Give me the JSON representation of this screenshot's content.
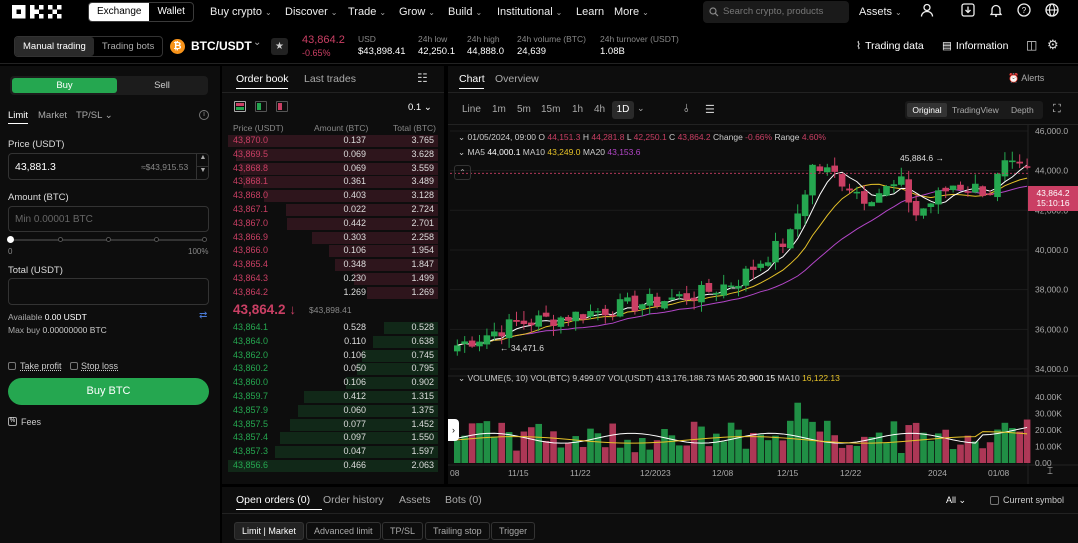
{
  "nav": {
    "exchange": "Exchange",
    "wallet": "Wallet",
    "menu": [
      "Buy crypto",
      "Discover",
      "Trade",
      "Grow",
      "Build",
      "Institutional",
      "Learn",
      "More"
    ],
    "search_placeholder": "Search crypto, products",
    "assets": "Assets"
  },
  "pair": {
    "modes": [
      "Manual trading",
      "Trading bots"
    ],
    "symbol": "BTC/USDT",
    "price": "43,864.2",
    "change": "-0.65%",
    "usd_label": "USD",
    "usd_value": "$43,898.41",
    "stats": [
      {
        "label": "24h low",
        "value": "42,250.1"
      },
      {
        "label": "24h high",
        "value": "44,888.0"
      },
      {
        "label": "24h volume (BTC)",
        "value": "24,639"
      },
      {
        "label": "24h turnover (USDT)",
        "value": "1.08B"
      }
    ],
    "trading_data": "Trading data",
    "information": "Information"
  },
  "order": {
    "buy": "Buy",
    "sell": "Sell",
    "types": [
      "Limit",
      "Market",
      "TP/SL"
    ],
    "price_label": "Price (USDT)",
    "price_value": "43,881.3",
    "price_usd": "≈$43,915.53",
    "amount_label": "Amount (BTC)",
    "amount_placeholder": "Min 0.00001 BTC",
    "slider_min": "0",
    "slider_max": "100%",
    "total_label": "Total (USDT)",
    "available_label": "Available",
    "available_value": "0.00 USDT",
    "maxbuy_label": "Max buy",
    "maxbuy_value": "0.00000000 BTC",
    "take_profit": "Take profit",
    "stop_loss": "Stop loss",
    "buy_button": "Buy BTC",
    "fees": "Fees"
  },
  "orderbook": {
    "tabs": [
      "Order book",
      "Last trades"
    ],
    "precision": "0.1",
    "headers": [
      "Price (USDT)",
      "Amount (BTC)",
      "Total (BTC)"
    ],
    "asks": [
      [
        "43,870.0",
        "0.137",
        "3.765"
      ],
      [
        "43,869.5",
        "0.069",
        "3.628"
      ],
      [
        "43,868.8",
        "0.069",
        "3.559"
      ],
      [
        "43,868.1",
        "0.361",
        "3.489"
      ],
      [
        "43,868.0",
        "0.403",
        "3.128"
      ],
      [
        "43,867.1",
        "0.022",
        "2.724"
      ],
      [
        "43,867.0",
        "0.442",
        "2.701"
      ],
      [
        "43,866.9",
        "0.303",
        "2.258"
      ],
      [
        "43,866.0",
        "0.106",
        "1.954"
      ],
      [
        "43,865.4",
        "0.348",
        "1.847"
      ],
      [
        "43,864.3",
        "0.230",
        "1.499"
      ],
      [
        "43,864.2",
        "1.269",
        "1.269"
      ]
    ],
    "mid_price": "43,864.2",
    "mid_usd": "$43,898.41",
    "bids": [
      [
        "43,864.1",
        "0.528",
        "0.528"
      ],
      [
        "43,864.0",
        "0.110",
        "0.638"
      ],
      [
        "43,862.0",
        "0.106",
        "0.745"
      ],
      [
        "43,860.2",
        "0.050",
        "0.795"
      ],
      [
        "43,860.0",
        "0.106",
        "0.902"
      ],
      [
        "43,859.7",
        "0.412",
        "1.315"
      ],
      [
        "43,857.9",
        "0.060",
        "1.375"
      ],
      [
        "43,857.5",
        "0.077",
        "1.452"
      ],
      [
        "43,857.4",
        "0.097",
        "1.550"
      ],
      [
        "43,857.3",
        "0.047",
        "1.597"
      ],
      [
        "43,856.6",
        "0.466",
        "2.063"
      ]
    ]
  },
  "chart": {
    "tabs": [
      "Chart",
      "Overview"
    ],
    "alerts": "Alerts",
    "intervals": [
      "Line",
      "1m",
      "5m",
      "15m",
      "1h",
      "4h",
      "1D"
    ],
    "views": [
      "Original",
      "TradingView",
      "Depth"
    ],
    "ohlc_line": {
      "date": "01/05/2024, 09:00",
      "o": "44,151.3",
      "h": "44,281.8",
      "l": "42,250.1",
      "c": "43,864.2",
      "change": "-0.66%",
      "range": "4.60%"
    },
    "ma_line": {
      "ma5": "44,000.1",
      "ma10": "43,249.0",
      "ma20": "43,153.6"
    },
    "high_marker": "45,884.6",
    "low_marker": "34,471.6",
    "current_price": "43,864.2",
    "countdown": "15:10:16",
    "price_axis": [
      "46,000.0",
      "44,000.0",
      "42,000.0",
      "40,000.0",
      "38,000.0",
      "36,000.0",
      "34,000.0"
    ],
    "vol_line": {
      "label": "VOLUME(5, 10)",
      "vol_btc": "9,499.07",
      "vol_usdt": "413,176,188.73",
      "ma5": "20,900.15",
      "ma10": "16,122.13"
    },
    "vol_axis": [
      "40.00K",
      "30.00K",
      "20.00K",
      "10.00K",
      "0.00"
    ],
    "date_axis": [
      "08",
      "11/15",
      "11/22",
      "12/2023",
      "12/08",
      "12/15",
      "12/22",
      "2024",
      "01/08"
    ],
    "colors": {
      "up": "#25a750",
      "down": "#ca3f64",
      "ma5": "#ffffff",
      "ma10": "#e6c229",
      "ma20": "#b346c8"
    }
  },
  "bottom": {
    "tabs": [
      "Open orders (0)",
      "Order history",
      "Assets",
      "Bots (0)"
    ],
    "filter": "All",
    "current_symbol": "Current symbol",
    "subtabs": [
      "Limit | Market",
      "Advanced limit",
      "TP/SL",
      "Trailing stop",
      "Trigger"
    ]
  }
}
